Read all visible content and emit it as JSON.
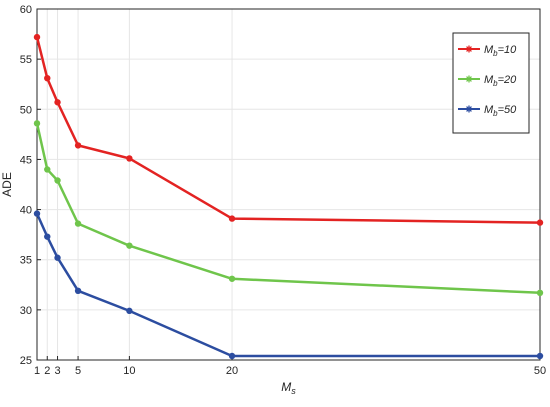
{
  "chart_data": {
    "type": "line",
    "title": "",
    "xlabel": {
      "base": "M",
      "sub": "s"
    },
    "ylabel": "ADE",
    "xlim": [
      1,
      50
    ],
    "ylim": [
      25,
      60
    ],
    "x": [
      1,
      2,
      3,
      5,
      10,
      20,
      50
    ],
    "xticks": [
      1,
      2,
      3,
      5,
      10,
      20,
      50
    ],
    "xtick_labels": [
      "1",
      "2",
      "3",
      "5",
      "10",
      "20",
      "50"
    ],
    "yticks": [
      25,
      30,
      35,
      40,
      45,
      50,
      55,
      60
    ],
    "ytick_labels": [
      "25",
      "30",
      "35",
      "40",
      "45",
      "50",
      "55",
      "60"
    ],
    "grid": true,
    "legend_position": "top-right",
    "series": [
      {
        "name_base": "M",
        "name_sub": "b",
        "name_suffix": "=10",
        "color": "#e32322",
        "values": [
          57.2,
          53.1,
          50.7,
          46.4,
          45.1,
          39.1,
          38.7
        ]
      },
      {
        "name_base": "M",
        "name_sub": "b",
        "name_suffix": "=20",
        "color": "#6fc54b",
        "values": [
          48.6,
          44.0,
          42.9,
          38.6,
          36.4,
          33.1,
          31.7
        ]
      },
      {
        "name_base": "M",
        "name_sub": "b",
        "name_suffix": "=50",
        "color": "#2c4da0",
        "values": [
          39.6,
          37.3,
          35.2,
          31.9,
          29.9,
          25.4,
          25.4
        ]
      }
    ]
  }
}
